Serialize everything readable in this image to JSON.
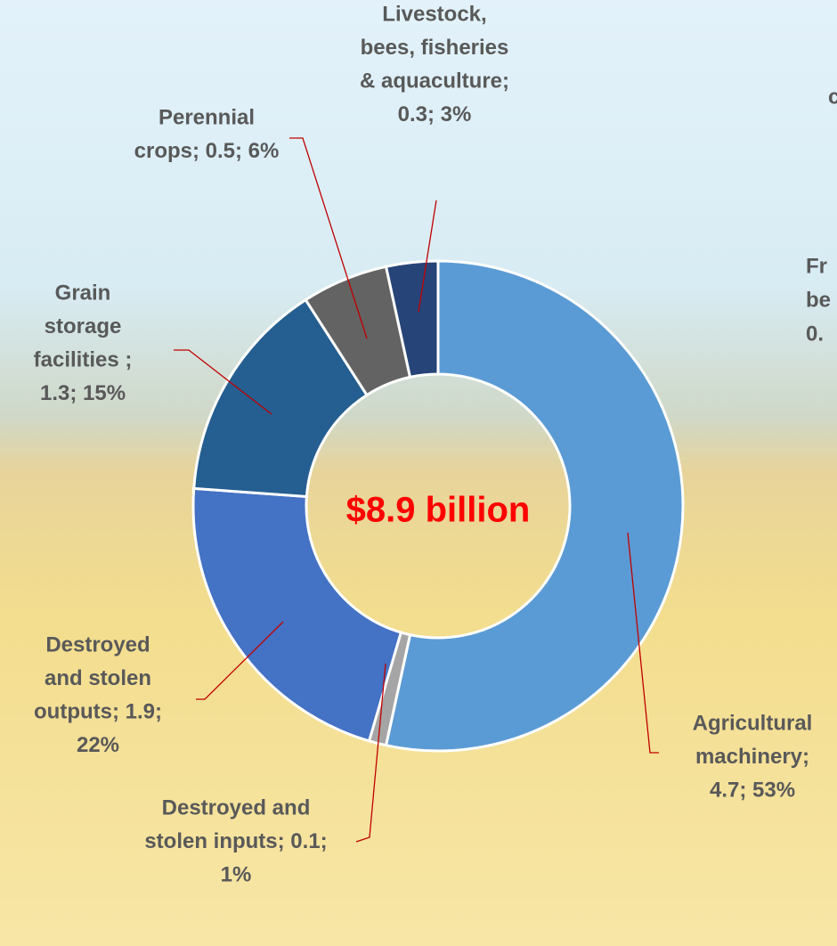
{
  "chart_data": {
    "type": "donut",
    "center_label": "$8.9 billion",
    "categories": [
      "Agricultural machinery",
      "Destroyed and stolen inputs",
      "Destroyed and stolen outputs",
      "Grain storage facilities",
      "Perennial crops",
      "Livestock, bees, fisheries & aquaculture"
    ],
    "values": [
      4.7,
      0.1,
      1.9,
      1.3,
      0.5,
      0.3
    ],
    "colors": [
      "#5b9bd5",
      "#a5a5a5",
      "#4472c4",
      "#255e91",
      "#636363",
      "#264478"
    ],
    "data_labels": [
      [
        "Agricultural",
        "machinery;",
        "4.7; 53%"
      ],
      [
        "Destroyed and",
        "stolen inputs; 0.1;",
        "1%"
      ],
      [
        "Destroyed",
        "and stolen",
        "outputs; 1.9;",
        "22%"
      ],
      [
        "Grain",
        "storage",
        "facilities ;",
        "1.3; 15%"
      ],
      [
        "Perennial",
        "crops; 0.5; 6%"
      ],
      [
        "Livestock,",
        "bees, fisheries",
        "& aquaculture;",
        "0.3; 3%"
      ]
    ],
    "cropped_labels": [
      [
        "c"
      ],
      [
        "Fr",
        "be",
        "0."
      ]
    ]
  }
}
